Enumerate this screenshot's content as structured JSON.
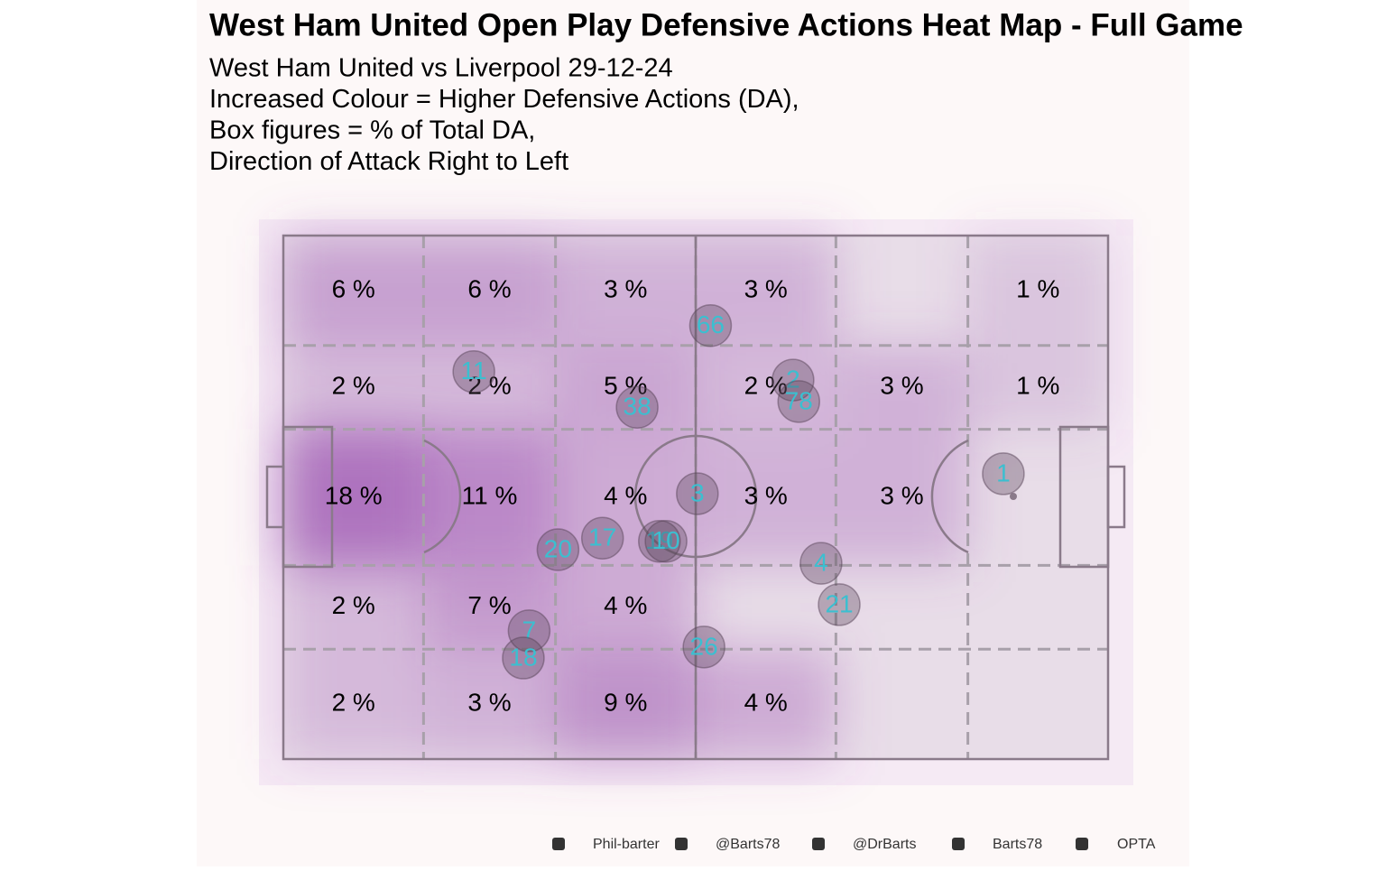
{
  "chart_data": {
    "type": "pitch-heatmap",
    "title": "West Ham United Open Play Defensive Actions Heat Map - Full Game",
    "subtitle": [
      "West Ham United vs Liverpool 29-12-24",
      "Increased Colour = Higher Defensive Actions (DA),",
      "Box figures = % of Total DA,",
      "Direction of Attack Right to Left"
    ],
    "xlim": [
      0,
      100
    ],
    "ylim": [
      0,
      100
    ],
    "x_edges": [
      0,
      17,
      33,
      50,
      67,
      83,
      100
    ],
    "y_edges": [
      0,
      21,
      37,
      63,
      79,
      100
    ],
    "color": "#9b4fb0",
    "zones": [
      {
        "values": [
          6,
          6,
          3,
          3,
          null,
          1
        ],
        "value_labels": [
          "6 %",
          "6 %",
          "3 %",
          "3 %",
          null,
          "1 %"
        ]
      },
      {
        "values": [
          2,
          2,
          5,
          2,
          3,
          1
        ],
        "value_labels": [
          "2 %",
          "2 %",
          "5 %",
          "2 %",
          "3 %",
          "1 %"
        ]
      },
      {
        "values": [
          18,
          11,
          4,
          3,
          3,
          null
        ],
        "value_labels": [
          "18 %",
          "11 %",
          "4 %",
          "3 %",
          "3 %",
          null
        ]
      },
      {
        "values": [
          2,
          7,
          4,
          null,
          null,
          null
        ],
        "value_labels": [
          "2 %",
          "7 %",
          "4 %",
          null,
          null,
          null
        ]
      },
      {
        "values": [
          2,
          3,
          9,
          4,
          null,
          null
        ],
        "value_labels": [
          "2 %",
          "3 %",
          "9 %",
          "4 %",
          null,
          null
        ]
      }
    ],
    "players": [
      {
        "name": "66",
        "x": 51.8,
        "y": 17.2
      },
      {
        "name": "11",
        "x": 23.1,
        "y": 26.0
      },
      {
        "name": "2",
        "x": 61.8,
        "y": 27.6
      },
      {
        "name": "78",
        "x": 62.5,
        "y": 31.7
      },
      {
        "name": "38",
        "x": 42.9,
        "y": 32.8
      },
      {
        "name": "1",
        "x": 87.3,
        "y": 45.5
      },
      {
        "name": "3",
        "x": 50.2,
        "y": 49.3
      },
      {
        "name": "17",
        "x": 38.7,
        "y": 57.8
      },
      {
        "name": "20",
        "x": 33.3,
        "y": 60.0
      },
      {
        "name": "19",
        "x": 45.6,
        "y": 58.4
      },
      {
        "name": "10",
        "x": 46.4,
        "y": 58.4
      },
      {
        "name": "4",
        "x": 65.2,
        "y": 62.6
      },
      {
        "name": "21",
        "x": 67.4,
        "y": 70.5
      },
      {
        "name": "7",
        "x": 29.8,
        "y": 75.5
      },
      {
        "name": "18",
        "x": 29.1,
        "y": 80.7
      },
      {
        "name": "26",
        "x": 51.0,
        "y": 78.6
      }
    ],
    "player_label_color": "#3bbfd0",
    "footer": [
      "Phil-barter",
      "@Barts78",
      "@DrBarts",
      "Barts78",
      "OPTA"
    ]
  }
}
